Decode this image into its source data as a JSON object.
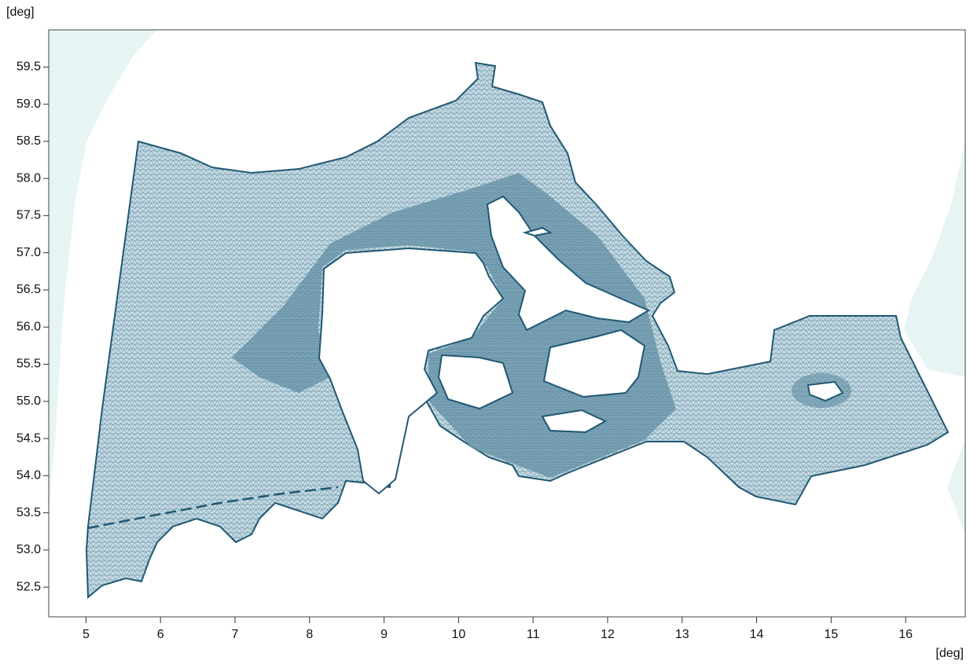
{
  "chart_data": {
    "type": "map",
    "xlabel": "[deg]",
    "ylabel": "[deg]",
    "xlim": [
      4.5,
      16.8
    ],
    "ylim": [
      52.1,
      60.0
    ],
    "xticks": [
      5,
      6,
      7,
      8,
      9,
      10,
      11,
      12,
      13,
      14,
      15,
      16
    ],
    "yticks": [
      {
        "value": 52.5,
        "label": "52.5"
      },
      {
        "value": 53,
        "label": "53.0"
      },
      {
        "value": 53.5,
        "label": "53.5"
      },
      {
        "value": 54,
        "label": "54.0"
      },
      {
        "value": 54.5,
        "label": "54.5"
      },
      {
        "value": 55,
        "label": "55.0"
      },
      {
        "value": 55.5,
        "label": "55.5"
      },
      {
        "value": 56,
        "label": "56.0"
      },
      {
        "value": 56.5,
        "label": "56.5"
      },
      {
        "value": 57,
        "label": "57.0"
      },
      {
        "value": 57.5,
        "label": "57.5"
      },
      {
        "value": 58,
        "label": "58.0"
      },
      {
        "value": 58.5,
        "label": "58.5"
      },
      {
        "value": 59,
        "label": "59.0"
      },
      {
        "value": 59.5,
        "label": "59.5"
      }
    ]
  }
}
